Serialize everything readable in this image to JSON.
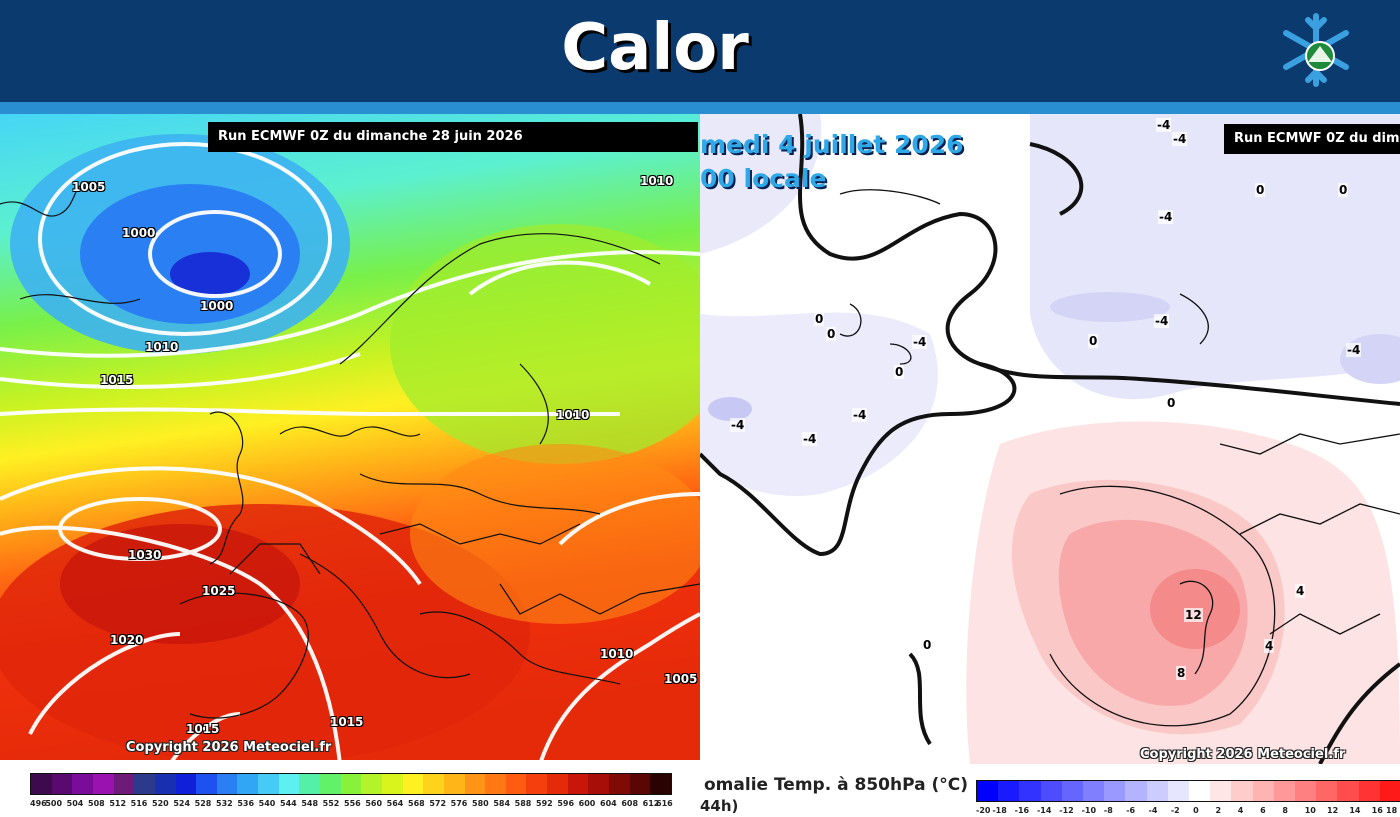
{
  "page": {
    "title": "Calor",
    "logo_icon": "snowflake-logo-icon",
    "colors": {
      "header": "#0b3a6e",
      "strip": "#2a8fd0",
      "title_text": "#ffffff"
    }
  },
  "left_map": {
    "run_label": "Run ECMWF 0Z du dimanche 28 juin 2026",
    "copyright": "Copyright 2026 Meteociel.fr",
    "isobars": [
      "1005",
      "1000",
      "1000",
      "1010",
      "1015",
      "1010",
      "1010",
      "1030",
      "1025",
      "1020",
      "1010",
      "1005",
      "1015",
      "1015"
    ],
    "legend_values": [
      "496",
      "500",
      "504",
      "508",
      "512",
      "516",
      "520",
      "524",
      "528",
      "532",
      "536",
      "540",
      "544",
      "548",
      "552",
      "556",
      "560",
      "564",
      "568",
      "572",
      "576",
      "580",
      "584",
      "588",
      "592",
      "596",
      "600",
      "604",
      "608",
      "612",
      "616"
    ],
    "legend_colors": [
      "#3d0a4e",
      "#5a0a6e",
      "#7a0c9a",
      "#9a12b0",
      "#6e1a78",
      "#2b3a8a",
      "#1830b0",
      "#1020d8",
      "#1e52f0",
      "#2a80f2",
      "#31a6f4",
      "#45cbf6",
      "#5cf0f0",
      "#55f0a8",
      "#62f26a",
      "#88f23a",
      "#b4f22a",
      "#d8f41c",
      "#fff022",
      "#ffd21c",
      "#ffb418",
      "#ff9416",
      "#ff7814",
      "#ff5c12",
      "#f5400e",
      "#e52a0a",
      "#c8160a",
      "#a80e08",
      "#800a06",
      "#5a0604",
      "#2a0202"
    ]
  },
  "right_map": {
    "run_label": "Run ECMWF 0Z du dim",
    "date_line1": "medi 4 juillet 2026",
    "date_line2": "00 locale",
    "copyright": "Copyright 2026 Meteociel.fr",
    "caption_line1": "omalie Temp. à 850hPa (°C)",
    "caption_line2": "44h)",
    "contour_labels": [
      "-4",
      "-4",
      "0",
      "0",
      "-4",
      "0",
      "0",
      "0",
      "-4",
      "-4",
      "-4",
      "-4",
      "-4",
      "0",
      "0",
      "0",
      "12",
      "8",
      "4",
      "4",
      "-4"
    ],
    "legend_values": [
      "-20",
      "-18",
      "-16",
      "-14",
      "-12",
      "-10",
      "-8",
      "-6",
      "-4",
      "-2",
      "0",
      "2",
      "4",
      "6",
      "8",
      "10",
      "12",
      "14",
      "16",
      "18"
    ],
    "legend_colors": [
      "#0000ff",
      "#1a1aff",
      "#3333ff",
      "#4d4dff",
      "#6666ff",
      "#8080ff",
      "#9999ff",
      "#b3b3ff",
      "#ccccff",
      "#e6e6ff",
      "#ffffff",
      "#ffe6e6",
      "#ffcccc",
      "#ffb3b3",
      "#ff9999",
      "#ff8080",
      "#ff6666",
      "#ff4d4d",
      "#ff3333",
      "#ff1a1a"
    ]
  }
}
